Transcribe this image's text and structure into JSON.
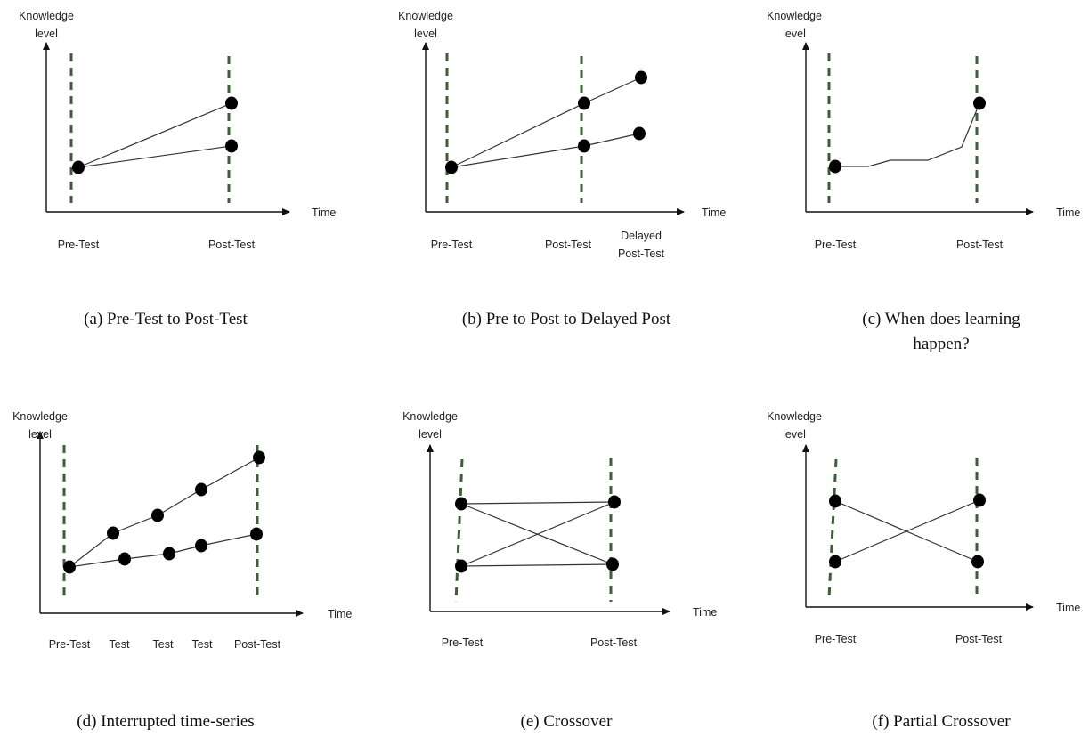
{
  "panels": [
    {
      "id": "a",
      "caption": [
        "(a) Pre-Test to Post-Test"
      ],
      "y_axis_label": [
        "Knowledge",
        "level"
      ],
      "x_axis_label": "Time",
      "x_ticks": [
        [
          "Pre-Test"
        ],
        [
          "Post-Test"
        ]
      ],
      "series": [
        {
          "points": [
            [
              "Pre-Test",
              "start"
            ],
            [
              "Post-Test",
              "high"
            ]
          ],
          "markers": true
        },
        {
          "points": [
            [
              "Pre-Test",
              "start"
            ],
            [
              "Post-Test",
              "low"
            ]
          ],
          "markers": true
        }
      ]
    },
    {
      "id": "b",
      "caption": [
        "(b) Pre to Post to Delayed Post"
      ],
      "y_axis_label": [
        "Knowledge",
        "level"
      ],
      "x_axis_label": "Time",
      "x_ticks": [
        [
          "Pre-Test"
        ],
        [
          "Post-Test"
        ],
        [
          "Delayed",
          "Post-Test"
        ]
      ],
      "series": [
        {
          "points": [
            [
              "Pre-Test",
              "start"
            ],
            [
              "Post-Test",
              "high"
            ],
            [
              "Delayed Post-Test",
              "higher"
            ]
          ],
          "markers": true
        },
        {
          "points": [
            [
              "Pre-Test",
              "start"
            ],
            [
              "Post-Test",
              "low"
            ],
            [
              "Delayed Post-Test",
              "slightly higher"
            ]
          ],
          "markers": true
        }
      ]
    },
    {
      "id": "c",
      "caption": [
        "(c) When does learning",
        "happen?"
      ],
      "y_axis_label": [
        "Knowledge",
        "level"
      ],
      "x_axis_label": "Time",
      "x_ticks": [
        [
          "Pre-Test"
        ],
        [
          "Post-Test"
        ]
      ],
      "series": [
        {
          "points": [
            [
              "Pre-Test",
              "start"
            ],
            [
              "between",
              "flat"
            ],
            [
              "between",
              "small step"
            ],
            [
              "between",
              "flat"
            ],
            [
              "between",
              "slight rise"
            ],
            [
              "Post-Test",
              "high"
            ]
          ],
          "markers": "endpoints"
        }
      ]
    },
    {
      "id": "d",
      "caption": [
        "(d) Interrupted time-series"
      ],
      "y_axis_label": [
        "Knowledge",
        "level"
      ],
      "x_axis_label": "Time",
      "x_ticks": [
        [
          "Pre-Test"
        ],
        [
          "Test"
        ],
        [
          "Test"
        ],
        [
          "Test"
        ],
        [
          "Post-Test"
        ]
      ],
      "series": [
        {
          "points": [
            [
              "Pre-Test",
              "start"
            ],
            [
              "Test",
              "rising"
            ],
            [
              "Test",
              "rising"
            ],
            [
              "Test",
              "rising"
            ],
            [
              "Post-Test",
              "highest"
            ]
          ],
          "markers": true
        },
        {
          "points": [
            [
              "Pre-Test",
              "start"
            ],
            [
              "Test",
              "gradual"
            ],
            [
              "Test",
              "gradual"
            ],
            [
              "Test",
              "gradual"
            ],
            [
              "Post-Test",
              "moderate"
            ]
          ],
          "markers": true
        }
      ]
    },
    {
      "id": "e",
      "caption": [
        "(e) Crossover"
      ],
      "y_axis_label": [
        "Knowledge",
        "level"
      ],
      "x_axis_label": "Time",
      "x_ticks": [
        [
          "Pre-Test"
        ],
        [
          "Post-Test"
        ]
      ],
      "series": [
        {
          "points": [
            [
              "Pre-Test",
              "high"
            ],
            [
              "Post-Test",
              "high"
            ]
          ],
          "markers": true
        },
        {
          "points": [
            [
              "Pre-Test",
              "high"
            ],
            [
              "Post-Test",
              "low"
            ]
          ],
          "markers": true
        },
        {
          "points": [
            [
              "Pre-Test",
              "low"
            ],
            [
              "Post-Test",
              "high"
            ]
          ],
          "markers": true
        },
        {
          "points": [
            [
              "Pre-Test",
              "low"
            ],
            [
              "Post-Test",
              "low"
            ]
          ],
          "markers": true
        }
      ]
    },
    {
      "id": "f",
      "caption": [
        "(f) Partial Crossover"
      ],
      "y_axis_label": [
        "Knowledge",
        "level"
      ],
      "x_axis_label": "Time",
      "x_ticks": [
        [
          "Pre-Test"
        ],
        [
          "Post-Test"
        ]
      ],
      "series": [
        {
          "points": [
            [
              "Pre-Test",
              "high"
            ],
            [
              "Post-Test",
              "low"
            ]
          ],
          "markers": true
        },
        {
          "points": [
            [
              "Pre-Test",
              "low"
            ],
            [
              "Post-Test",
              "high"
            ]
          ],
          "markers": true
        }
      ]
    }
  ],
  "colors": {
    "axis": "#111111",
    "line": "#333333",
    "marker": "#000000",
    "dashed_guide": "#3d5e37",
    "text": "#222222"
  }
}
